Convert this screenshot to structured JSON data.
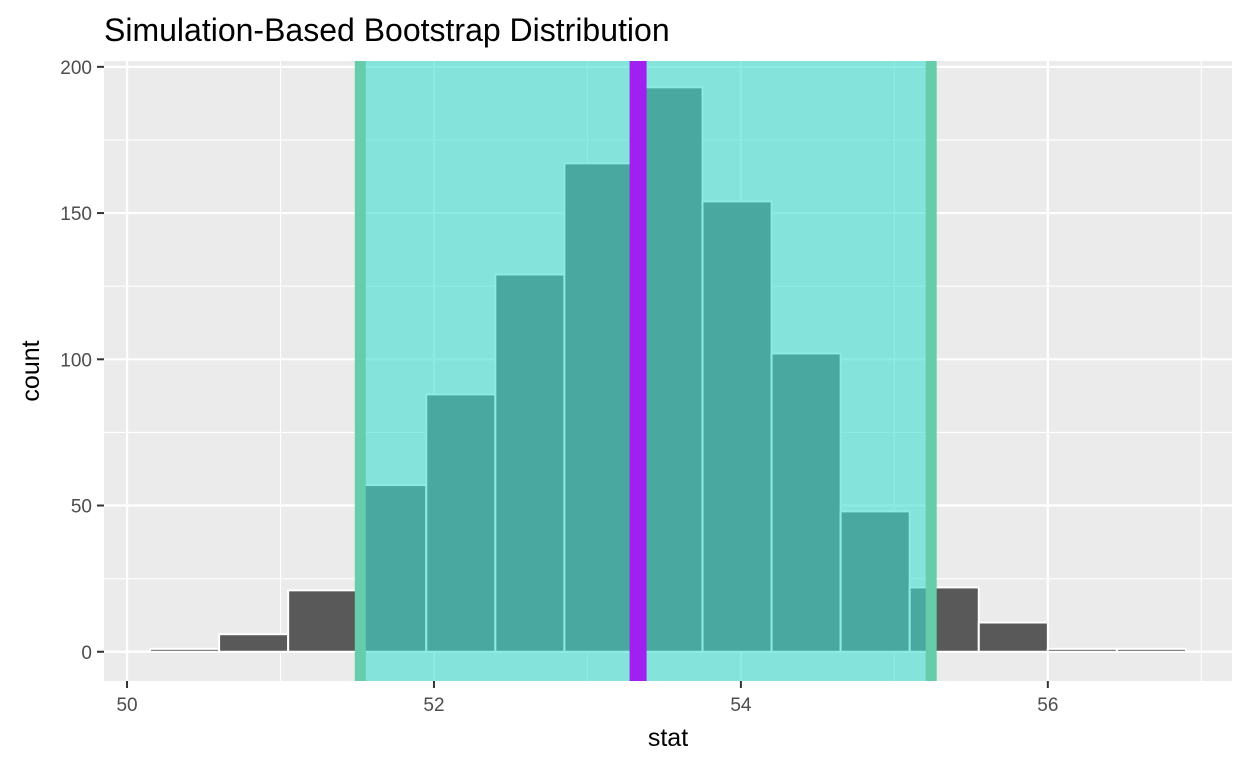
{
  "chart_data": {
    "type": "bar",
    "title": "Simulation-Based Bootstrap Distribution",
    "xlabel": "stat",
    "ylabel": "count",
    "xlim": [
      49.85,
      57.2
    ],
    "ylim": [
      -10,
      202
    ],
    "x_ticks": [
      50,
      52,
      54,
      56
    ],
    "y_ticks": [
      0,
      50,
      100,
      150,
      200
    ],
    "bin_width": 0.45,
    "bins": [
      {
        "start": 50.15,
        "end": 50.6,
        "count": 1
      },
      {
        "start": 50.6,
        "end": 51.05,
        "count": 6
      },
      {
        "start": 51.05,
        "end": 51.5,
        "count": 21
      },
      {
        "start": 51.5,
        "end": 51.95,
        "count": 57
      },
      {
        "start": 51.95,
        "end": 52.4,
        "count": 88
      },
      {
        "start": 52.4,
        "end": 52.85,
        "count": 129
      },
      {
        "start": 52.85,
        "end": 53.3,
        "count": 167
      },
      {
        "start": 53.3,
        "end": 53.75,
        "count": 193
      },
      {
        "start": 53.75,
        "end": 54.2,
        "count": 154
      },
      {
        "start": 54.2,
        "end": 54.65,
        "count": 102
      },
      {
        "start": 54.65,
        "end": 55.1,
        "count": 48
      },
      {
        "start": 55.1,
        "end": 55.55,
        "count": 22
      },
      {
        "start": 55.55,
        "end": 56.0,
        "count": 10
      },
      {
        "start": 56.0,
        "end": 56.45,
        "count": 1
      },
      {
        "start": 56.45,
        "end": 56.9,
        "count": 1
      }
    ],
    "confidence_interval": {
      "lower": 51.52,
      "upper": 55.24
    },
    "point_estimate": 53.33,
    "grid": true,
    "colors": {
      "panel_background": "#ebebeb",
      "grid_line": "#ffffff",
      "bar_fill": "#595959",
      "bar_outline": "#ffffff",
      "ci_fill": "#40e0d0",
      "ci_line": "#66cdaa",
      "point_estimate_line": "#a020f0"
    }
  }
}
